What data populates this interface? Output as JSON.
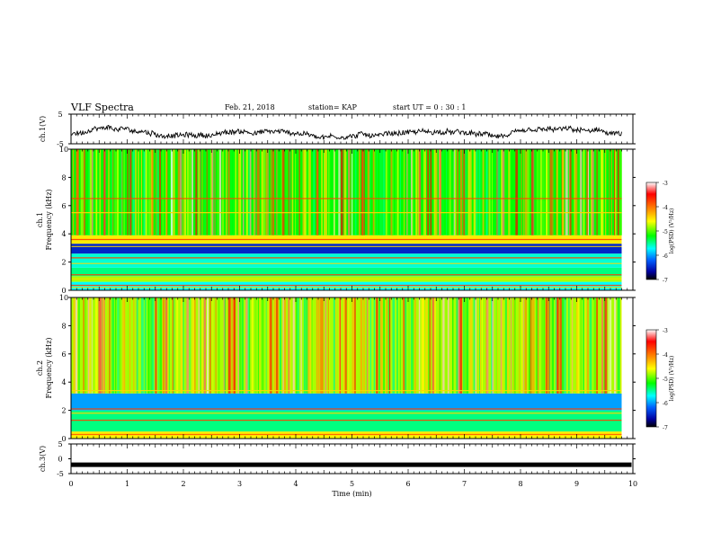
{
  "header": {
    "title": "VLF Spectra",
    "date": "Feb. 21, 2018",
    "station": "station= KAP",
    "start": "start UT = 0 : 30 : 1"
  },
  "colorbar": {
    "label": "log(PSD) (V²/Hz)",
    "ticks": [
      "-3",
      "-4",
      "-5",
      "-6",
      "-7"
    ],
    "colors": [
      "#ffffff",
      "#ff0000",
      "#ffa000",
      "#ffff00",
      "#00ff00",
      "#00ffff",
      "#0060ff",
      "#0000a0",
      "#000000"
    ]
  },
  "chart_data": [
    {
      "type": "line",
      "ylabel": "ch.1(V)",
      "ylim": [
        -5,
        5
      ],
      "yticks": [
        "5",
        "-5"
      ],
      "xlim": [
        0,
        10
      ],
      "note_series": "noisy waveform, mean ~ -1.5 V, range ~ -4.5 to +1"
    },
    {
      "type": "heatmap",
      "ylabel": "ch.1\nFrequency (kHz)",
      "ylabel_lines": [
        "ch.1",
        "Frequency (kHz)"
      ],
      "ylim": [
        0,
        10
      ],
      "yticks": [
        "10",
        "8",
        "6",
        "4",
        "2",
        "0"
      ],
      "xlim": [
        0,
        10
      ],
      "zlim": [
        -7,
        -3
      ],
      "bands": [
        {
          "f_low": 0,
          "f_high": 0.6,
          "level": -5.6
        },
        {
          "f_low": 0.6,
          "f_high": 1.0,
          "level": -4.6
        },
        {
          "f_low": 1.0,
          "f_high": 1.6,
          "level": -5.3
        },
        {
          "f_low": 1.6,
          "f_high": 2.6,
          "level": -5.5
        },
        {
          "f_low": 2.6,
          "f_high": 3.3,
          "level": -6.4
        },
        {
          "f_low": 3.3,
          "f_high": 3.9,
          "level": -4.3
        },
        {
          "f_low": 3.9,
          "f_high": 10,
          "level": -5.0
        }
      ]
    },
    {
      "type": "heatmap",
      "ylabel": "ch.2\nFrequency (kHz)",
      "ylabel_lines": [
        "ch.2",
        "Frequency (kHz)"
      ],
      "ylim": [
        0,
        10
      ],
      "yticks": [
        "10",
        "8",
        "6",
        "4",
        "2",
        "0"
      ],
      "xlim": [
        0,
        10
      ],
      "zlim": [
        -7,
        -3
      ],
      "bands": [
        {
          "f_low": 0,
          "f_high": 0.5,
          "level": -4.4
        },
        {
          "f_low": 0.5,
          "f_high": 2.0,
          "level": -5.3
        },
        {
          "f_low": 2.0,
          "f_high": 3.2,
          "level": -5.9
        },
        {
          "f_low": 3.2,
          "f_high": 10,
          "level": -4.6
        }
      ]
    },
    {
      "type": "line",
      "ylabel": "ch.3(V)",
      "ylim": [
        -5,
        5
      ],
      "yticks": [
        "5",
        "0",
        "-5"
      ],
      "xlim": [
        0,
        10
      ],
      "xlabel": "Time (min)",
      "xticks": [
        "0",
        "1",
        "2",
        "3",
        "4",
        "5",
        "6",
        "7",
        "8",
        "9",
        "10"
      ],
      "series": [
        {
          "x": [
            0,
            9.8
          ],
          "y": [
            -2,
            -2
          ]
        }
      ]
    }
  ]
}
